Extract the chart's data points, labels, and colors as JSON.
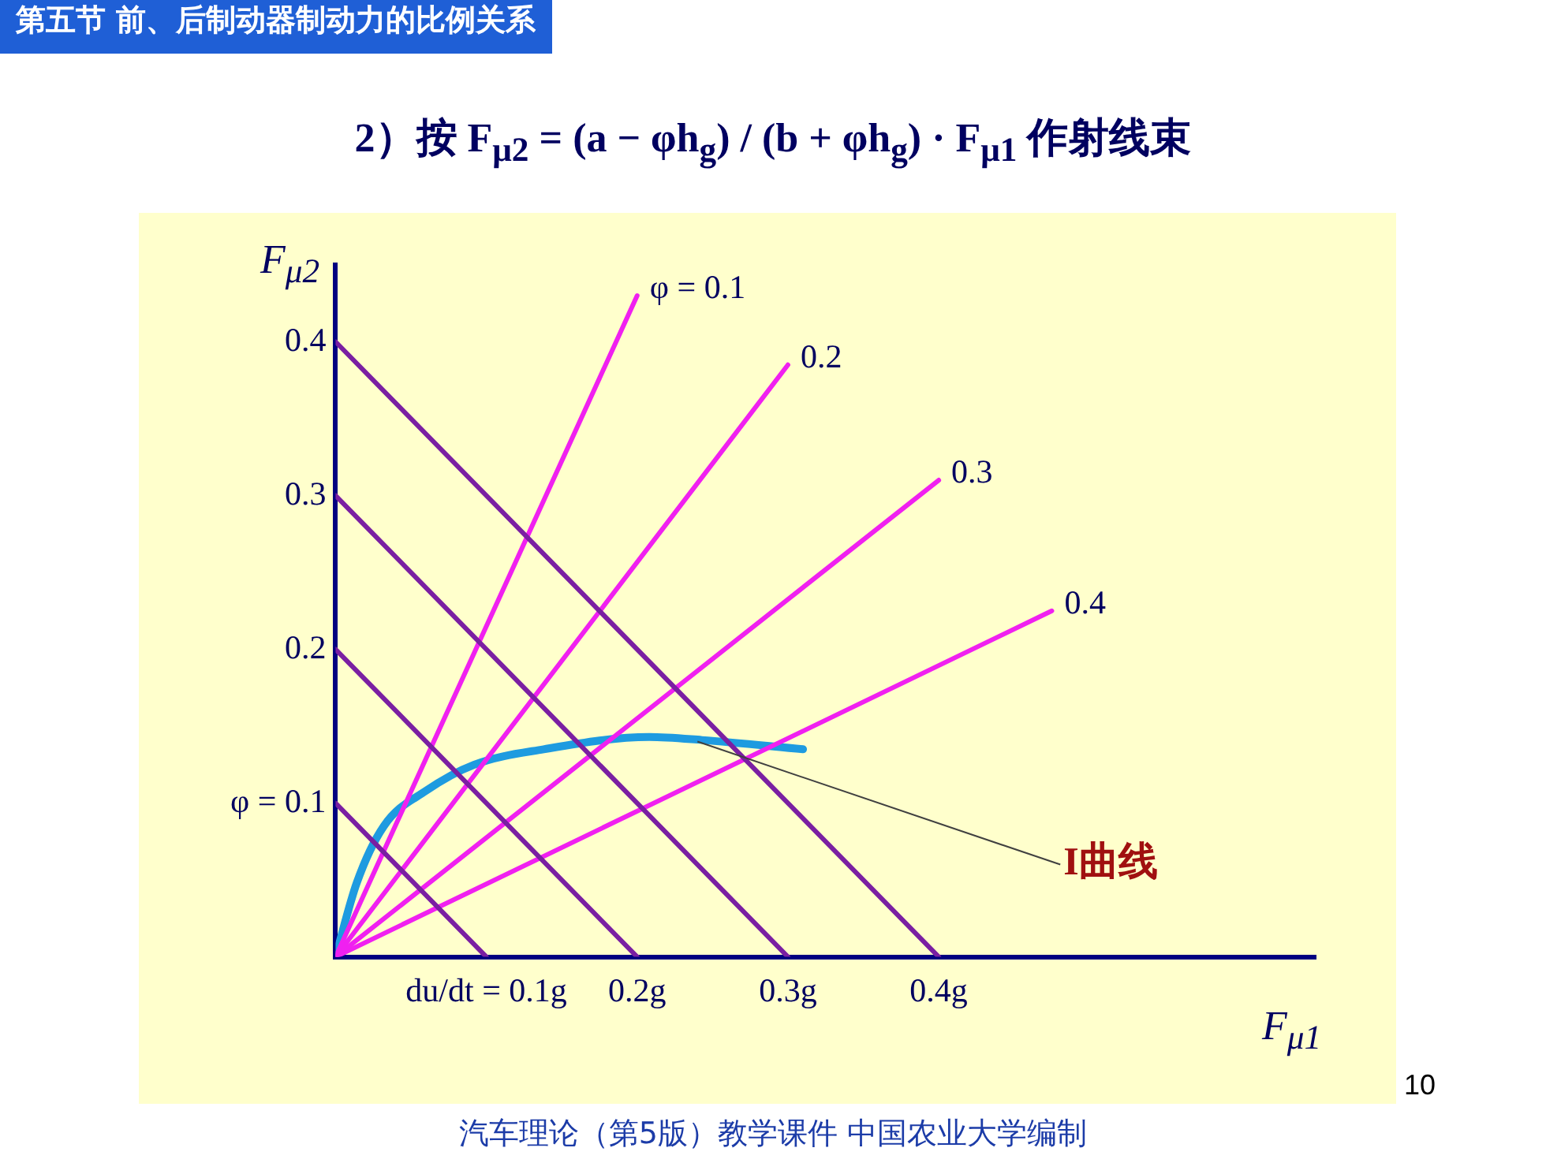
{
  "chart_data": {
    "type": "line",
    "title": "第五节 前、后制动器制动力的比例关系",
    "subtitle": "2）按 F$_{μ2}$ = (a − φh$_{g}$) / (b + φh$_{g}$) · F$_{μ1}$ 作射线束",
    "xlabel": "F$_{μ1}$",
    "ylabel": "F$_{μ2}$",
    "xlim": [
      0,
      0.65
    ],
    "ylim": [
      0,
      0.45
    ],
    "xticks": [
      {
        "value": 0.1,
        "label": "du/dt = 0.1g"
      },
      {
        "value": 0.2,
        "label": "0.2g"
      },
      {
        "value": 0.3,
        "label": "0.3g"
      },
      {
        "value": 0.4,
        "label": "0.4g"
      }
    ],
    "yticks": [
      {
        "value": 0.1,
        "label": "φ = 0.1"
      },
      0.2,
      0.3,
      0.4
    ],
    "grid": false,
    "legend": false,
    "marker": "none",
    "line_style": "solid",
    "series": [
      {
        "color": "#7a1fa2",
        "x": [
          0,
          0.1
        ],
        "values": [
          0.1,
          0
        ]
      },
      {
        "color": "#7a1fa2",
        "x": [
          0,
          0.2
        ],
        "values": [
          0.2,
          0
        ]
      },
      {
        "color": "#7a1fa2",
        "x": [
          0,
          0.3
        ],
        "values": [
          0.3,
          0
        ]
      },
      {
        "color": "#7a1fa2",
        "x": [
          0,
          0.4
        ],
        "values": [
          0.4,
          0
        ]
      },
      {
        "name": "φ = 0.1",
        "color": "#f020f0",
        "x": [
          0,
          0.2
        ],
        "values": [
          0,
          0.43
        ]
      },
      {
        "name": "0.2",
        "color": "#f020f0",
        "x": [
          0,
          0.3
        ],
        "values": [
          0,
          0.385
        ]
      },
      {
        "name": "0.3",
        "color": "#f020f0",
        "x": [
          0,
          0.4
        ],
        "values": [
          0,
          0.31
        ]
      },
      {
        "name": "0.4",
        "color": "#f020f0",
        "x": [
          0,
          0.475
        ],
        "values": [
          0,
          0.225
        ]
      },
      {
        "color": "#1e9be0",
        "x": [
          0,
          0.014,
          0.032,
          0.06,
          0.092,
          0.138,
          0.208,
          0.243,
          0.31
        ],
        "values": [
          0,
          0.048,
          0.085,
          0.108,
          0.125,
          0.135,
          0.143,
          0.141,
          0.135
        ]
      }
    ],
    "annotations": [
      {
        "text": "I曲线",
        "x": 0.24,
        "y": 0.14
      },
      "10",
      "汽车理论（第5版）教学课件 中国农业大学编制"
    ]
  }
}
